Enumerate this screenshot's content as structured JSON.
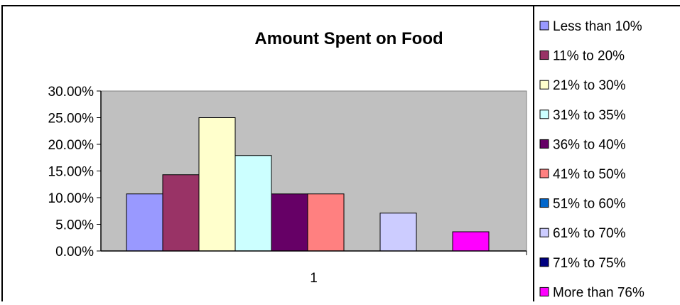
{
  "chart_data": {
    "type": "bar",
    "title": "Amount Spent on Food",
    "categories": [
      "1"
    ],
    "ylim": [
      0,
      0.3
    ],
    "yticks": [
      0,
      0.05,
      0.1,
      0.15,
      0.2,
      0.25,
      0.3
    ],
    "ytick_labels": [
      "0.00%",
      "5.00%",
      "10.00%",
      "15.00%",
      "20.00%",
      "25.00%",
      "30.00%"
    ],
    "grid": false,
    "plot_background": "#c0c0c0",
    "legend_position": "right",
    "series": [
      {
        "name": "Less than 10%",
        "values": [
          0.107
        ],
        "color": "#9999ff"
      },
      {
        "name": "11% to 20%",
        "values": [
          0.143
        ],
        "color": "#993366"
      },
      {
        "name": "21% to 30%",
        "values": [
          0.25
        ],
        "color": "#ffffcc"
      },
      {
        "name": "31% to 35%",
        "values": [
          0.179
        ],
        "color": "#ccffff"
      },
      {
        "name": "36% to 40%",
        "values": [
          0.107
        ],
        "color": "#660066"
      },
      {
        "name": "41% to 50%",
        "values": [
          0.107
        ],
        "color": "#ff8080"
      },
      {
        "name": "51% to 60%",
        "values": [
          0
        ],
        "color": "#0066cc"
      },
      {
        "name": "61% to 70%",
        "values": [
          0.071
        ],
        "color": "#ccccff"
      },
      {
        "name": "71% to 75%",
        "values": [
          0
        ],
        "color": "#000080"
      },
      {
        "name": "More than 76%",
        "values": [
          0.036
        ],
        "color": "#ff00ff"
      }
    ]
  }
}
